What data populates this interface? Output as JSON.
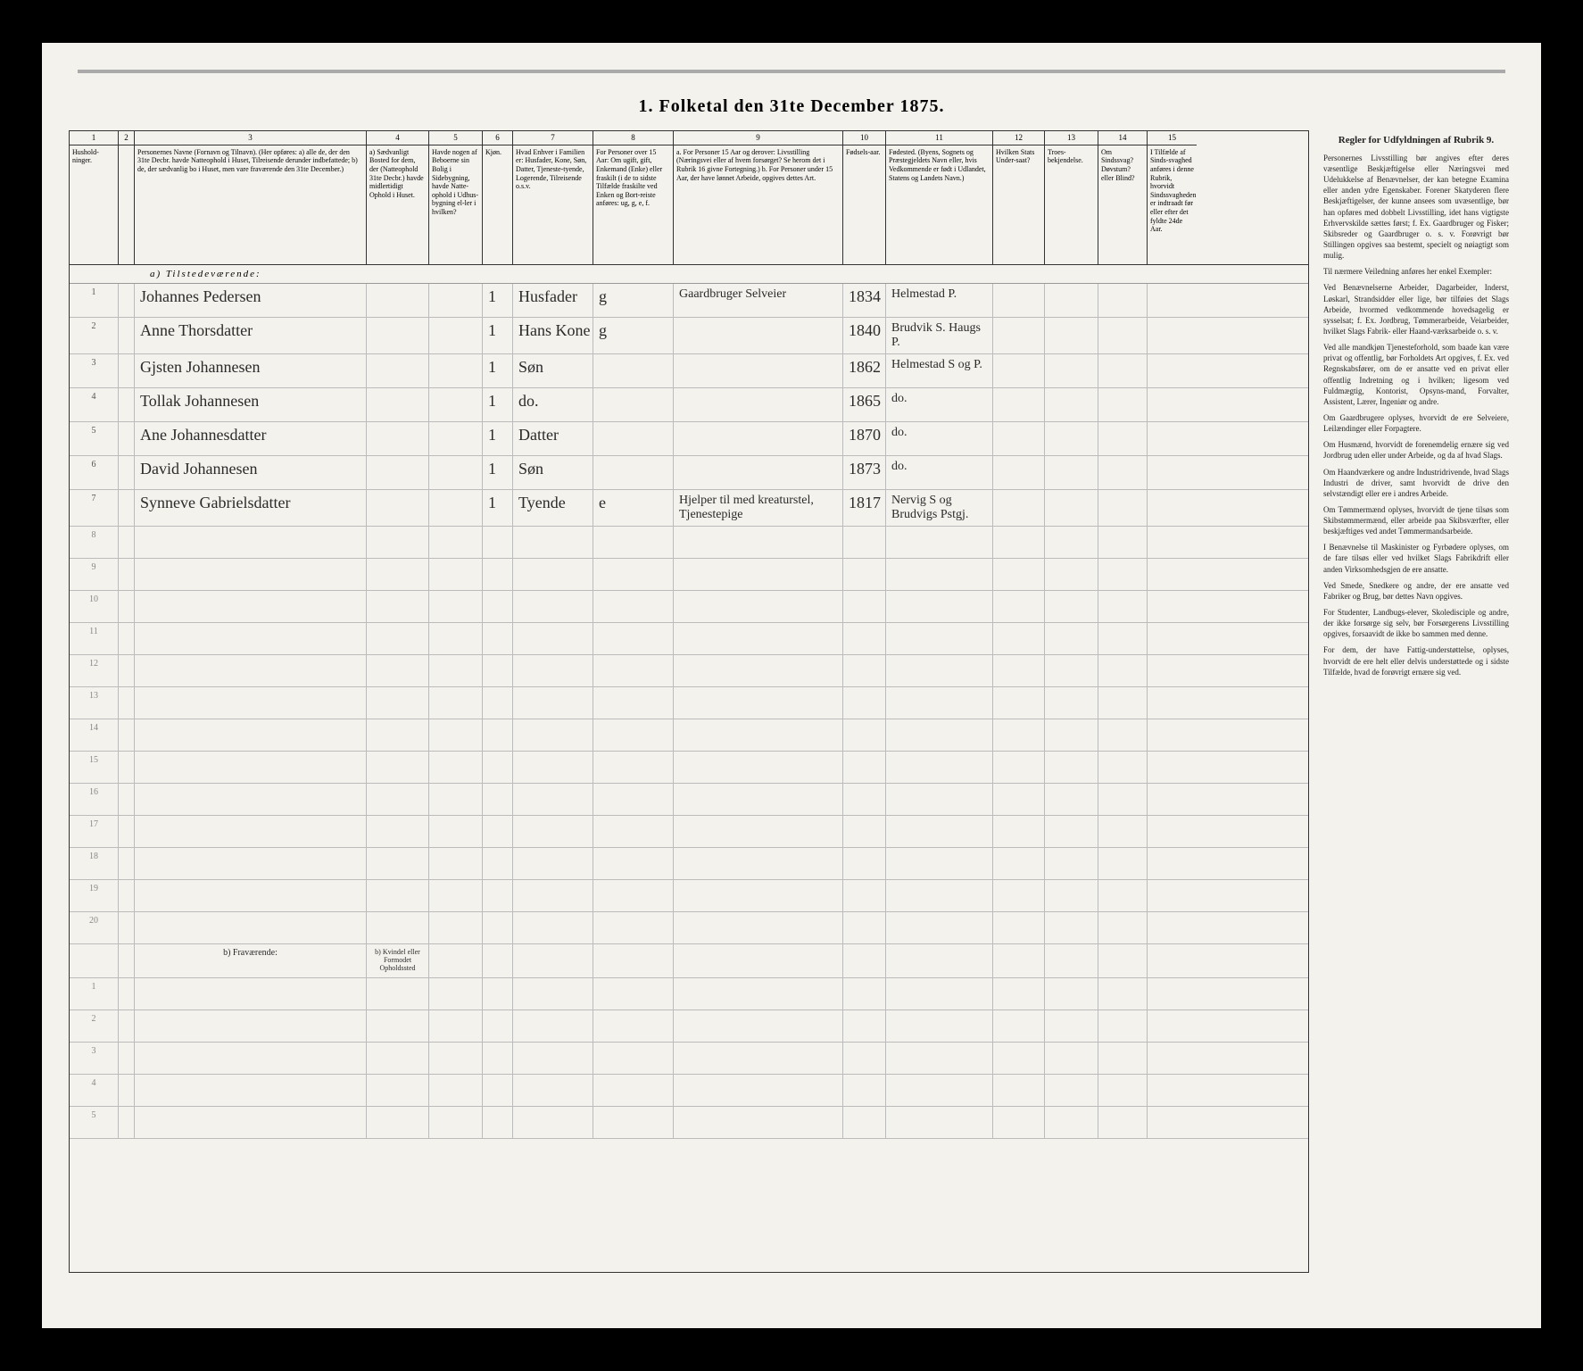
{
  "title": "1. Folketal den 31te December 1875.",
  "columns": [
    {
      "num": "1",
      "label": "Hushold-ninger."
    },
    {
      "num": "2",
      "label": ""
    },
    {
      "num": "3",
      "label": "Personernes Navne (Fornavn og Tilnavn). (Her opføres: a) alle de, der den 31te Decbr. havde Natteophold i Huset, Tilreisende derunder indbefattede; b) de, der sædvanlig bo i Huset, men vare fraværende den 31te December.)"
    },
    {
      "num": "4",
      "label": "a) Sædvanligt Bosted for dem, der (Natteophold 31te Decbr.) havde midlertidigt Ophold i Huset."
    },
    {
      "num": "5",
      "label": "Havde nogen af Beboerne sin Bolig i Sidebygning, havde Natte-ophold i Udhus-bygning el-ler i hvilken?"
    },
    {
      "num": "6",
      "label": "Kjøn."
    },
    {
      "num": "7",
      "label": "Hvad Enhver i Familien er: Husfader, Kone, Søn, Datter, Tjeneste-tyende, Logerende, Tilreisende o.s.v."
    },
    {
      "num": "8",
      "label": "For Personer over 15 Aar: Om ugift, gift, Enkemand (Enke) eller fraskilt (i de to sidste Tilfælde fraskilte ved Enken og Bort-reiste anføres: ug, g, e, f."
    },
    {
      "num": "9",
      "label": "a. For Personer 15 Aar og derover: Livsstilling (Næringsvei eller af hvem forsørget? Se herom det i Rubrik 16 givne Fortegning.) b. For Personer under 15 Aar, der have lønnet Arbeide, opgives dettes Art."
    },
    {
      "num": "10",
      "label": "Fødsels-aar."
    },
    {
      "num": "11",
      "label": "Fødested. (Byens, Sognets og Præstegjeldets Navn eller, hvis Vedkommende er født i Udlandet, Statens og Landets Navn.)"
    },
    {
      "num": "12",
      "label": "Hvilken Stats Under-saat?"
    },
    {
      "num": "13",
      "label": "Troes-bekjendelse."
    },
    {
      "num": "14",
      "label": "Om Sindssvag? Døvstum? eller Blind?"
    },
    {
      "num": "15",
      "label": "I Tilfælde af Sinds-svaghed anføres i denne Rubrik, hvorvidt Sindssvagheden er indtraadt før eller efter det fyldte 24de Aar."
    }
  ],
  "section_a": "a) Tilstedeværende:",
  "section_b": "b) Fraværende:",
  "section_b_note": "b) Kvindel eller Formodet Opholdssted",
  "rows": [
    {
      "n": "1",
      "name": "Johannes Pedersen",
      "c6": "1",
      "rel": "Husfader",
      "civ": "g",
      "occ": "Gaardbruger Selveier",
      "year": "1834",
      "place": "Helmestad P."
    },
    {
      "n": "2",
      "name": "Anne Thorsdatter",
      "c6": "1",
      "rel": "Hans Kone",
      "civ": "g",
      "occ": "",
      "year": "1840",
      "place": "Brudvik S. Haugs P."
    },
    {
      "n": "3",
      "name": "Gjsten Johannesen",
      "c6": "1",
      "rel": "Søn",
      "civ": "",
      "occ": "",
      "year": "1862",
      "place": "Helmestad S og P."
    },
    {
      "n": "4",
      "name": "Tollak Johannesen",
      "c6": "1",
      "rel": "do.",
      "civ": "",
      "occ": "",
      "year": "1865",
      "place": "do."
    },
    {
      "n": "5",
      "name": "Ane Johannesdatter",
      "c6": "1",
      "rel": "Datter",
      "civ": "",
      "occ": "",
      "year": "1870",
      "place": "do."
    },
    {
      "n": "6",
      "name": "David Johannesen",
      "c6": "1",
      "rel": "Søn",
      "civ": "",
      "occ": "",
      "year": "1873",
      "place": "do."
    },
    {
      "n": "7",
      "name": "Synneve Gabrielsdatter",
      "c6": "1",
      "rel": "Tyende",
      "civ": "e",
      "occ": "Hjelper til med kreaturstel, Tjenestepige",
      "year": "1817",
      "place": "Nervig S og Brudvigs Pstgj."
    }
  ],
  "empty_rows_a": [
    "8",
    "9",
    "10",
    "11",
    "12",
    "13",
    "14",
    "15",
    "16",
    "17",
    "18",
    "19",
    "20"
  ],
  "empty_rows_b": [
    "1",
    "2",
    "3",
    "4",
    "5"
  ],
  "rules": {
    "title": "Regler for Udfyldningen af Rubrik 9.",
    "paragraphs": [
      "Personernes Livsstilling bør angives efter deres væsentlige Beskjæftigelse eller Næringsvei med Udelukkelse af Benævnelser, der kan betegne Examina eller anden ydre Egenskaber. Forener Skatyderen flere Beskjæftigelser, der kunne ansees som uvæsentlige, bør han opføres med dobbelt Livsstilling, idet hans vigtigste Erhvervskilde sættes først; f. Ex. Gaardbruger og Fisker; Skibsreder og Gaardbruger o. s. v. Forøvrigt bør Stillingen opgives saa bestemt, specielt og nøiagtigt som mulig.",
      "Til nærmere Veiledning anføres her enkel Exempler:",
      "Ved Benævnelserne Arbeider, Dagarbeider, Inderst, Løskarl, Strandsidder eller lige, bør tilføies det Slags Arbeide, hvormed vedkommende hovedsagelig er sysselsat; f. Ex. Jordbrug, Tømmerarbeide, Veiarbeider, hvilket Slags Fabrik- eller Haand-værksarbeide o. s. v.",
      "Ved alle mandkjøn Tjenesteforhold, som baade kan være privat og offentlig, bør Forholdets Art opgives, f. Ex. ved Regnskabsfører, om de er ansatte ved en privat eller offentlig Indretning og i hvilken; ligesom ved Fuldmægtig, Kontorist, Opsyns-mand, Forvalter, Assistent, Lærer, Ingeniør og andre.",
      "Om Gaardbrugere oplyses, hvorvidt de ere Selveiere, Leilændinger eller Forpagtere.",
      "Om Husmænd, hvorvidt de forenemdelig ernære sig ved Jordbrug uden eller under Arbeide, og da af hvad Slags.",
      "Om Haandværkere og andre Industridrivende, hvad Slags Industri de driver, samt hvorvidt de drive den selvstændigt eller ere i andres Arbeide.",
      "Om Tømmermænd oplyses, hvorvidt de tjene tilsøs som Skibstømmermænd, eller arbeide paa Skibsværfter, eller beskjæftiges ved andet Tømmermandsarbeide.",
      "I Benævnelse til Maskinister og Fyrbødere oplyses, om de fare tilsøs eller ved hvilket Slags Fabrikdrift eller anden Virksomhedsgjen de ere ansatte.",
      "Ved Smede, Snedkere og andre, der ere ansatte ved Fabriker og Brug, bør dettes Navn opgives.",
      "For Studenter, Landbugs-elever, Skoledisciple og andre, der ikke forsørge sig selv, bør Forsørgerens Livsstilling opgives, forsaavidt de ikke bo sammen med denne.",
      "For dem, der have Fattig-understøttelse, oplyses, hvorvidt de ere helt eller delvis understøttede og i sidste Tilfælde, hvad de forøvrigt ernære sig ved."
    ]
  }
}
